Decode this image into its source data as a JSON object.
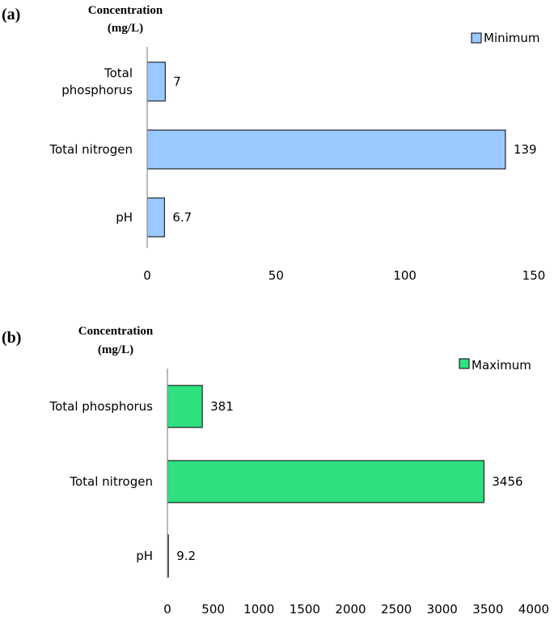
{
  "chart_data": [
    {
      "type": "bar",
      "orientation": "horizontal",
      "panel_label": "(a)",
      "ylabel_line1": "Concentration",
      "ylabel_line2": "(mg/L)",
      "categories": [
        "Total phosphorus",
        "Total nitrogen",
        "pH"
      ],
      "category_lines": [
        [
          "Total",
          "phosphorus"
        ],
        [
          "Total nitrogen"
        ],
        [
          "pH"
        ]
      ],
      "series": [
        {
          "name": "Minimum",
          "values": [
            7,
            139,
            6.7
          ],
          "color": "#99c9ff"
        }
      ],
      "data_labels": [
        "7",
        "139",
        "6.7"
      ],
      "xlim": [
        0,
        150
      ],
      "xticks": [
        "0",
        "50",
        "100",
        "150"
      ],
      "grid": false,
      "legend_position": "top-right"
    },
    {
      "type": "bar",
      "orientation": "horizontal",
      "panel_label": "(b)",
      "ylabel_line1": "Concentration",
      "ylabel_line2": "(mg/L)",
      "categories": [
        "Total phosphorus",
        "Total nitrogen",
        "pH"
      ],
      "category_lines": [
        [
          "Total phosphorus"
        ],
        [
          "Total nitrogen"
        ],
        [
          "pH"
        ]
      ],
      "series": [
        {
          "name": "Maximum",
          "values": [
            381,
            3456,
            9.2
          ],
          "color": "#2fe07f"
        }
      ],
      "data_labels": [
        "381",
        "3456",
        "9.2"
      ],
      "xlim": [
        0,
        4000
      ],
      "xticks": [
        "0",
        "500",
        "1000",
        "1500",
        "2000",
        "2500",
        "3000",
        "3500",
        "4000"
      ],
      "grid": false,
      "legend_position": "top-right"
    }
  ]
}
